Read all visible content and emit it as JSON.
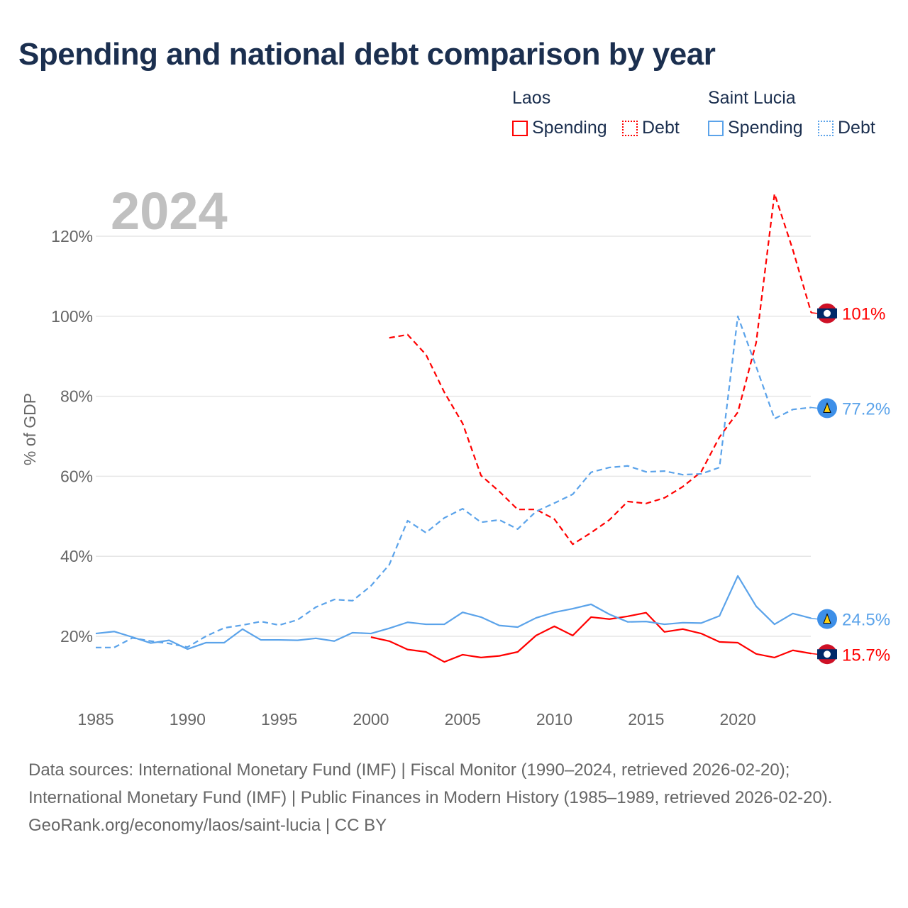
{
  "title": "Spending and national debt comparison by year",
  "legend": {
    "groups": [
      {
        "country": "Laos",
        "color": "#ff0000",
        "items": [
          "Spending",
          "Debt"
        ]
      },
      {
        "country": "Saint Lucia",
        "color": "#5ba3ea",
        "items": [
          "Spending",
          "Debt"
        ]
      }
    ]
  },
  "footer": {
    "sources": "Data sources: International Monetary Fund (IMF) | Fiscal Monitor (1990–2024, retrieved 2026-02-20); International Monetary Fund (IMF) | Public Finances in Modern History (1985–1989, retrieved 2026-02-20).",
    "credit": "GeoRank.org/economy/laos/saint-lucia | CC BY"
  },
  "chart_data": {
    "type": "line",
    "year_label": "2024",
    "ylabel": "% of GDP",
    "ylim": [
      5,
      135
    ],
    "xlim": [
      1985,
      2024
    ],
    "yticks": [
      20,
      40,
      60,
      80,
      100,
      120
    ],
    "ytick_labels": [
      "20%",
      "40%",
      "60%",
      "80%",
      "100%",
      "120%"
    ],
    "xticks": [
      1985,
      1990,
      1995,
      2000,
      2005,
      2010,
      2015,
      2020
    ],
    "xtick_labels": [
      "1985",
      "1990",
      "1995",
      "2000",
      "2005",
      "2010",
      "2015",
      "2020"
    ],
    "grid": true,
    "series": [
      {
        "name": "Laos Spending",
        "color": "#ff0000",
        "dash": false,
        "start": 2000,
        "end_label": "15.7%",
        "values": [
          19.8,
          18.8,
          16.7,
          16.1,
          13.6,
          15.4,
          14.7,
          15.1,
          16.1,
          20.2,
          22.5,
          20.2,
          24.8,
          24.3,
          25.0,
          25.9,
          21.1,
          21.8,
          20.7,
          18.6,
          18.4,
          15.6,
          14.7,
          16.5,
          15.7
        ]
      },
      {
        "name": "Laos Debt",
        "color": "#ff0000",
        "dash": true,
        "start": 2001,
        "end_label": "101%",
        "values": [
          94.6,
          95.4,
          90.4,
          81.0,
          73.2,
          60.2,
          56.2,
          51.7,
          51.7,
          49.3,
          43.0,
          45.9,
          49.1,
          53.7,
          53.2,
          54.6,
          57.4,
          61.1,
          69.8,
          76.0,
          93.4,
          130.6,
          116.6,
          100.9
        ]
      },
      {
        "name": "Saint Lucia Spending",
        "color": "#5ba3ea",
        "dash": false,
        "start": 1985,
        "end_label": "24.5%",
        "values": [
          20.7,
          21.2,
          19.8,
          18.3,
          19.0,
          16.8,
          18.4,
          18.4,
          21.8,
          19.1,
          19.1,
          19.0,
          19.5,
          18.8,
          20.9,
          20.7,
          22.0,
          23.5,
          23.0,
          23.0,
          26.0,
          24.8,
          22.7,
          22.3,
          24.6,
          26.0,
          26.9,
          28.0,
          25.5,
          23.6,
          23.7,
          23.0,
          23.4,
          23.3,
          25.1,
          35.1,
          27.5,
          23.0,
          25.7,
          24.5
        ]
      },
      {
        "name": "Saint Lucia Debt",
        "color": "#5ba3ea",
        "dash": true,
        "start": 1985,
        "end_label": "77.2%",
        "values": [
          17.2,
          17.2,
          19.6,
          18.8,
          18.2,
          17.3,
          20.0,
          22.1,
          22.8,
          23.7,
          22.8,
          24.1,
          27.3,
          29.2,
          28.9,
          32.6,
          37.9,
          48.9,
          45.9,
          49.6,
          51.9,
          48.5,
          49.1,
          46.8,
          51.2,
          53.3,
          55.5,
          61.0,
          62.2,
          62.6,
          61.1,
          61.3,
          60.4,
          60.6,
          62.2,
          100.0,
          87.4,
          74.4,
          76.7,
          77.2
        ]
      }
    ]
  }
}
